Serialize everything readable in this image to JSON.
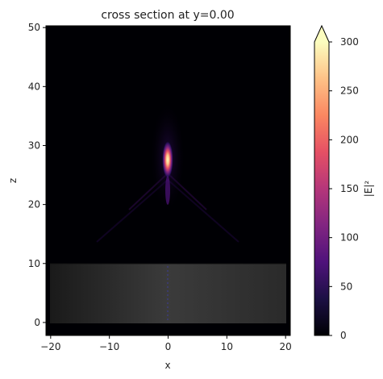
{
  "chart_data": {
    "type": "heatmap",
    "title": "cross section at y=0.00",
    "xlabel": "x",
    "ylabel": "z",
    "xlim": [
      -20.8,
      20.8
    ],
    "ylim": [
      -2.2,
      50.3
    ],
    "x_ticks": [
      -20,
      -10,
      0,
      10,
      20
    ],
    "x_tick_labels": [
      "−20",
      "−10",
      "0",
      "10",
      "20"
    ],
    "y_ticks": [
      0,
      10,
      20,
      30,
      40,
      50
    ],
    "y_tick_labels": [
      "0",
      "10",
      "20",
      "30",
      "40",
      "50"
    ],
    "colorbar": {
      "label": "|E|²",
      "colormap": "magma",
      "range": [
        0,
        300
      ],
      "extend": "max",
      "ticks": [
        0,
        50,
        100,
        150,
        200,
        250,
        300
      ],
      "tick_labels": [
        "0",
        "50",
        "100",
        "150",
        "200",
        "250",
        "300"
      ]
    },
    "substrate": {
      "x_range": [
        -20,
        20
      ],
      "z_range": [
        0,
        10
      ],
      "color": "#3a3a3a"
    },
    "focus": {
      "x": 0,
      "z": 27.5,
      "peak_value": 300
    },
    "background_color": "#000004"
  }
}
